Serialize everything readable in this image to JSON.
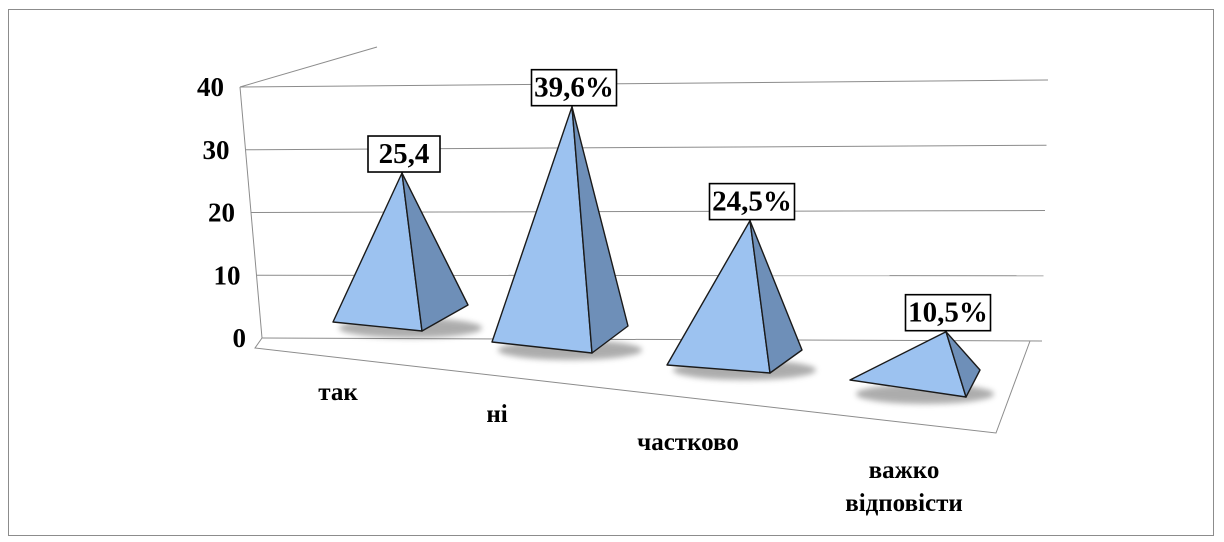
{
  "chart_data": {
    "type": "bar",
    "style": "3d-pyramid",
    "categories": [
      "так",
      "ні",
      "частково",
      "важко відповісти"
    ],
    "category_lines": [
      [
        "так"
      ],
      [
        "ні"
      ],
      [
        "частково"
      ],
      [
        "важко",
        "відповісти"
      ]
    ],
    "values": [
      25.4,
      39.6,
      24.5,
      10.5
    ],
    "data_labels": [
      "25,4",
      "39,6%",
      "24,5%",
      "10,5%"
    ],
    "yticks": [
      "0",
      "10",
      "20",
      "30",
      "40"
    ],
    "ylim": [
      0,
      40
    ],
    "grid": true,
    "title": "",
    "xlabel": "",
    "ylabel": "",
    "colors": {
      "front": "#9cc2f0",
      "side": "#6e8fb8",
      "edge": "#1a1a1a",
      "grid": "#8c8c8c",
      "shadow": "#6a6a6a"
    }
  }
}
